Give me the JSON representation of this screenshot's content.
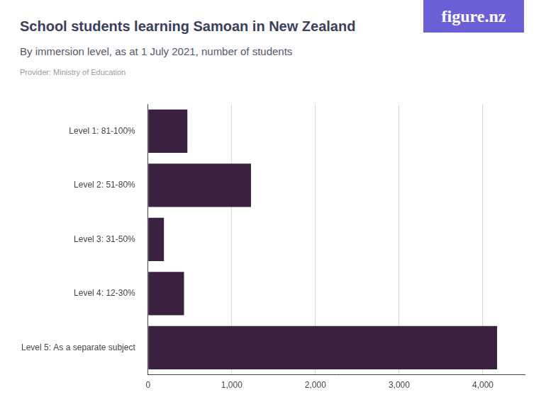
{
  "chart_data": {
    "type": "bar",
    "orientation": "horizontal",
    "title": "School students learning Samoan in New Zealand",
    "subtitle": "By immersion level, as at 1 July 2021, number of students",
    "source": "Provider: Ministry of Education",
    "logo": "figure.nz",
    "categories": [
      "Level 1: 81-100%",
      "Level 2: 51-80%",
      "Level 3: 31-50%",
      "Level 4: 12-30%",
      "Level 5: As a separate subject"
    ],
    "values": [
      470,
      1230,
      190,
      430,
      4170
    ],
    "color": "#3a2140",
    "xlim": [
      0,
      4500
    ],
    "xticks": [
      0,
      {
        "value": 1000,
        "label": "1,000"
      },
      {
        "value": 2000,
        "label": "2,000"
      },
      {
        "value": 3000,
        "label": "3,000"
      },
      {
        "value": 4000,
        "label": "4,000"
      }
    ],
    "grid": true,
    "legend": false
  }
}
